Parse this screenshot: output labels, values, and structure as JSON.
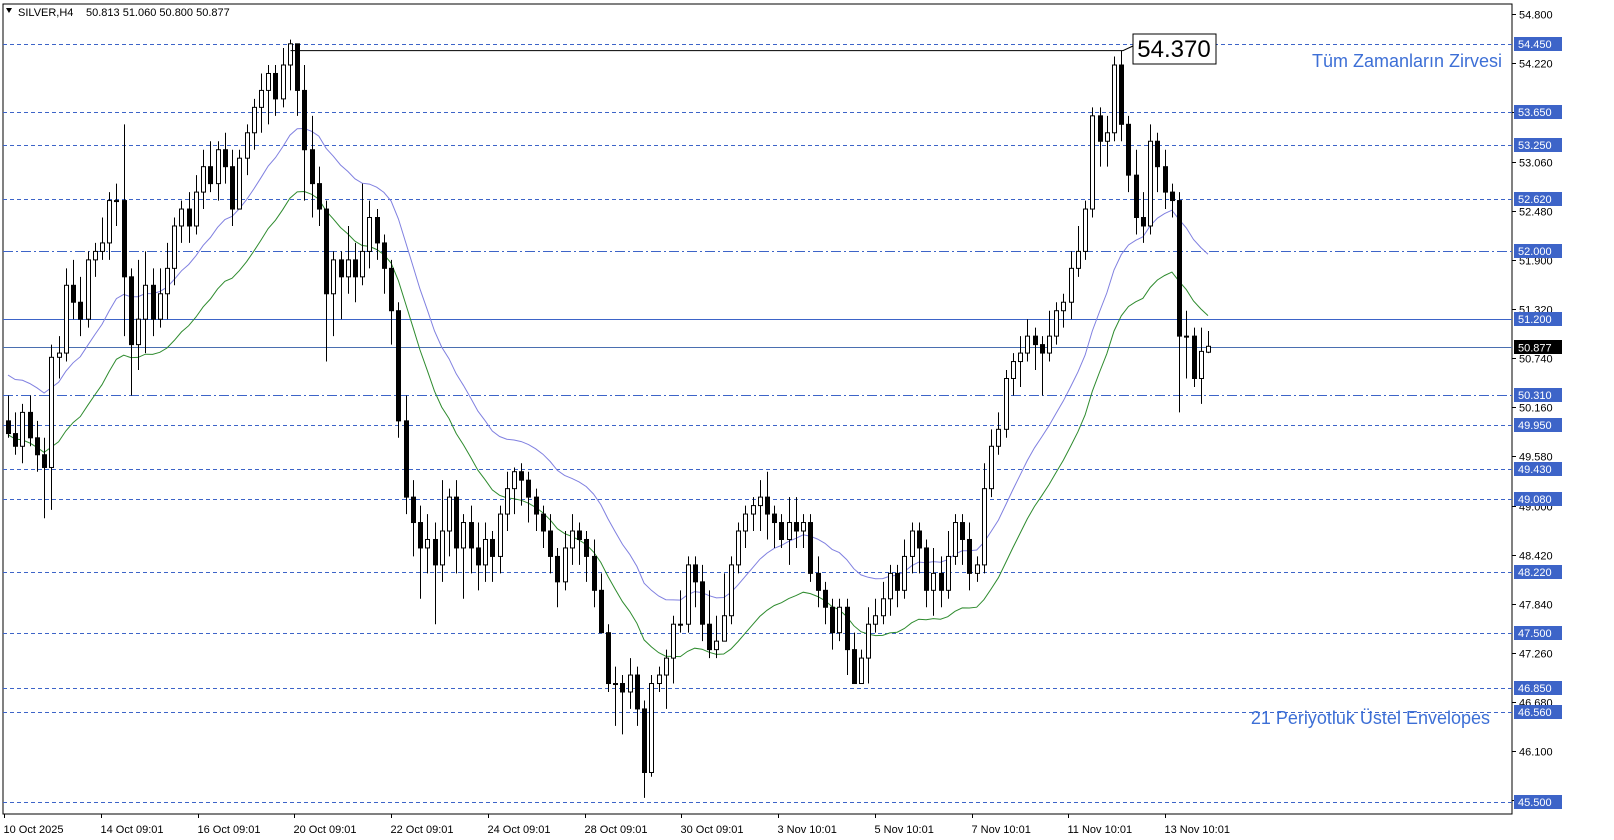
{
  "header": {
    "symbol": "SILVER,H4",
    "ohlc": "50.813 51.060 50.800 50.877"
  },
  "colors": {
    "background": "#ffffff",
    "bull_body": "#ffffff",
    "bear_body": "#000000",
    "candle_outline": "#000000",
    "envelope_upper": "#8080e0",
    "envelope_lower": "#2e8b2e",
    "level_line": "#3d64c8",
    "annotation_text": "#3d6fd6"
  },
  "chart_data": {
    "type": "candlestick",
    "timeframe": "H4",
    "ylim": [
      45.36,
      54.92
    ],
    "y_ticks": [
      "54.800",
      "54.220",
      "53.640",
      "53.060",
      "52.480",
      "51.900",
      "51.320",
      "50.740",
      "50.160",
      "49.580",
      "49.000",
      "48.420",
      "47.840",
      "47.260",
      "46.680",
      "46.100",
      "45.520"
    ],
    "x_ticks": [
      "10 Oct 2025",
      "14 Oct 09:01",
      "16 Oct 09:01",
      "20 Oct 09:01",
      "22 Oct 09:01",
      "24 Oct 09:01",
      "28 Oct 09:01",
      "30 Oct 09:01",
      "3 Nov 10:01",
      "5 Nov 10:01",
      "7 Nov 10:01",
      "11 Nov 10:01",
      "13 Nov 10:01"
    ],
    "levels": [
      {
        "value": 54.45,
        "label": "54.450",
        "style": "dashed"
      },
      {
        "value": 53.65,
        "label": "53.650",
        "style": "dashed"
      },
      {
        "value": 53.25,
        "label": "53.250",
        "style": "dashed"
      },
      {
        "value": 52.62,
        "label": "52.620",
        "style": "dashed"
      },
      {
        "value": 52.0,
        "label": "52.000",
        "style": "dashdot"
      },
      {
        "value": 51.2,
        "label": "51.200",
        "style": "solid"
      },
      {
        "value": 50.31,
        "label": "50.310",
        "style": "dashdot"
      },
      {
        "value": 49.95,
        "label": "49.950",
        "style": "dashed"
      },
      {
        "value": 49.43,
        "label": "49.430",
        "style": "dashed"
      },
      {
        "value": 49.08,
        "label": "49.080",
        "style": "dashed"
      },
      {
        "value": 48.22,
        "label": "48.220",
        "style": "dashed"
      },
      {
        "value": 47.5,
        "label": "47.500",
        "style": "dashed"
      },
      {
        "value": 46.85,
        "label": "46.850",
        "style": "dashed"
      },
      {
        "value": 46.56,
        "label": "46.560",
        "style": "dashed"
      },
      {
        "value": 45.5,
        "label": "45.500",
        "style": "dashed"
      }
    ],
    "current_price": {
      "value": 50.877,
      "label": "50.877"
    },
    "peak_label": {
      "value": 54.37,
      "label": "54.370"
    },
    "annotations": {
      "all_time_high": "Tüm Zamanların Zirvesi",
      "envelopes": "21 Periyotluk Üstel Envelopes"
    },
    "candles": [
      [
        50.0,
        49.85,
        50.3,
        49.8
      ],
      [
        49.85,
        49.7,
        50.1,
        49.6
      ],
      [
        49.7,
        50.1,
        50.2,
        49.5
      ],
      [
        50.1,
        49.8,
        50.3,
        49.7
      ],
      [
        49.8,
        49.6,
        50.0,
        49.4
      ],
      [
        49.6,
        49.45,
        49.8,
        48.85
      ],
      [
        49.45,
        50.75,
        50.9,
        48.95
      ],
      [
        50.75,
        50.8,
        51.0,
        50.5
      ],
      [
        50.8,
        51.6,
        51.8,
        50.7
      ],
      [
        51.6,
        51.4,
        51.9,
        51.2
      ],
      [
        51.4,
        51.2,
        51.7,
        51.0
      ],
      [
        51.2,
        51.9,
        52.0,
        51.1
      ],
      [
        51.9,
        52.0,
        52.1,
        51.7
      ],
      [
        52.0,
        52.1,
        52.4,
        51.9
      ],
      [
        52.1,
        52.6,
        52.7,
        51.9
      ],
      [
        52.6,
        52.6,
        52.8,
        52.3
      ],
      [
        52.6,
        51.7,
        53.5,
        51.0
      ],
      [
        51.7,
        50.9,
        51.8,
        50.3
      ],
      [
        50.9,
        51.2,
        51.9,
        50.6
      ],
      [
        51.2,
        51.6,
        52.0,
        50.8
      ],
      [
        51.6,
        51.2,
        51.8,
        51.0
      ],
      [
        51.2,
        51.5,
        51.8,
        51.1
      ],
      [
        51.5,
        51.8,
        52.1,
        51.2
      ],
      [
        51.8,
        52.3,
        52.4,
        51.6
      ],
      [
        52.3,
        52.5,
        52.6,
        52.1
      ],
      [
        52.5,
        52.3,
        52.7,
        52.1
      ],
      [
        52.3,
        52.7,
        52.9,
        52.2
      ],
      [
        52.7,
        53.0,
        53.2,
        52.5
      ],
      [
        53.0,
        52.8,
        53.3,
        52.7
      ],
      [
        52.8,
        53.2,
        53.3,
        52.6
      ],
      [
        53.2,
        53.0,
        53.4,
        52.8
      ],
      [
        53.0,
        52.5,
        53.2,
        52.3
      ],
      [
        52.5,
        53.1,
        53.2,
        52.5
      ],
      [
        53.1,
        53.4,
        53.5,
        52.9
      ],
      [
        53.4,
        53.7,
        53.8,
        53.2
      ],
      [
        53.7,
        53.9,
        54.1,
        53.4
      ],
      [
        53.9,
        54.1,
        54.2,
        53.5
      ],
      [
        54.1,
        53.8,
        54.2,
        53.6
      ],
      [
        53.8,
        54.2,
        54.4,
        53.7
      ],
      [
        54.2,
        54.45,
        54.5,
        53.9
      ],
      [
        54.45,
        53.9,
        54.45,
        53.6
      ],
      [
        53.9,
        53.2,
        54.2,
        52.6
      ],
      [
        53.2,
        52.8,
        53.6,
        52.4
      ],
      [
        52.8,
        52.5,
        53.0,
        52.3
      ],
      [
        52.5,
        51.5,
        52.6,
        50.7
      ],
      [
        51.5,
        51.9,
        52.0,
        51.0
      ],
      [
        51.9,
        51.7,
        52.0,
        51.2
      ],
      [
        51.7,
        51.9,
        52.3,
        51.5
      ],
      [
        51.9,
        51.7,
        52.1,
        51.4
      ],
      [
        51.7,
        52.0,
        52.8,
        51.6
      ],
      [
        52.0,
        52.4,
        52.6,
        51.8
      ],
      [
        52.4,
        52.1,
        52.5,
        51.9
      ],
      [
        52.1,
        51.8,
        52.2,
        51.5
      ],
      [
        51.8,
        51.3,
        51.9,
        50.9
      ],
      [
        51.3,
        50.0,
        51.4,
        49.8
      ],
      [
        50.0,
        49.1,
        50.3,
        48.9
      ],
      [
        49.1,
        48.8,
        49.3,
        48.4
      ],
      [
        48.8,
        48.5,
        49.0,
        47.9
      ],
      [
        48.5,
        48.6,
        48.9,
        48.2
      ],
      [
        48.6,
        48.3,
        48.8,
        47.6
      ],
      [
        48.3,
        48.7,
        49.3,
        48.1
      ],
      [
        48.7,
        49.1,
        49.2,
        48.4
      ],
      [
        49.1,
        48.5,
        49.3,
        48.2
      ],
      [
        48.5,
        48.8,
        48.9,
        47.9
      ],
      [
        48.8,
        48.5,
        49.0,
        48.2
      ],
      [
        48.5,
        48.3,
        48.8,
        48.0
      ],
      [
        48.3,
        48.6,
        48.8,
        48.1
      ],
      [
        48.6,
        48.4,
        48.7,
        48.1
      ],
      [
        48.4,
        48.9,
        49.0,
        48.2
      ],
      [
        48.9,
        49.2,
        49.4,
        48.7
      ],
      [
        49.2,
        49.4,
        49.45,
        48.9
      ],
      [
        49.4,
        49.3,
        49.5,
        49.0
      ],
      [
        49.3,
        49.1,
        49.4,
        48.8
      ],
      [
        49.1,
        48.9,
        49.2,
        48.7
      ],
      [
        48.9,
        48.7,
        49.0,
        48.5
      ],
      [
        48.7,
        48.4,
        48.9,
        48.2
      ],
      [
        48.4,
        48.1,
        48.5,
        47.8
      ],
      [
        48.1,
        48.5,
        48.7,
        48.0
      ],
      [
        48.5,
        48.7,
        48.9,
        48.3
      ],
      [
        48.7,
        48.6,
        48.8,
        48.3
      ],
      [
        48.6,
        48.4,
        48.7,
        48.1
      ],
      [
        48.4,
        48.0,
        48.6,
        47.8
      ],
      [
        48.0,
        47.5,
        48.2,
        47.5
      ],
      [
        47.5,
        46.9,
        47.6,
        46.8
      ],
      [
        46.9,
        46.9,
        47.1,
        46.4
      ],
      [
        46.9,
        46.8,
        47.0,
        46.3
      ],
      [
        46.8,
        47.0,
        47.2,
        46.6
      ],
      [
        47.0,
        46.6,
        47.1,
        46.4
      ],
      [
        46.6,
        45.85,
        46.7,
        45.55
      ],
      [
        45.85,
        46.9,
        47.0,
        45.8
      ],
      [
        46.9,
        47.0,
        47.1,
        46.8
      ],
      [
        47.0,
        47.2,
        47.3,
        46.6
      ],
      [
        47.2,
        47.6,
        47.7,
        46.9
      ],
      [
        47.6,
        47.6,
        48.0,
        47.5
      ],
      [
        47.6,
        48.3,
        48.4,
        47.5
      ],
      [
        48.3,
        48.1,
        48.4,
        47.8
      ],
      [
        48.1,
        47.6,
        48.3,
        47.4
      ],
      [
        47.6,
        47.3,
        48.0,
        47.2
      ],
      [
        47.3,
        47.4,
        47.7,
        47.2
      ],
      [
        47.4,
        47.7,
        48.2,
        47.4
      ],
      [
        47.7,
        48.3,
        48.4,
        47.6
      ],
      [
        48.3,
        48.7,
        48.8,
        48.2
      ],
      [
        48.7,
        48.9,
        49.0,
        48.5
      ],
      [
        48.9,
        49.0,
        49.1,
        48.7
      ],
      [
        49.0,
        49.1,
        49.3,
        48.7
      ],
      [
        49.1,
        48.9,
        49.4,
        48.6
      ],
      [
        48.9,
        48.8,
        49.0,
        48.5
      ],
      [
        48.8,
        48.6,
        48.9,
        48.5
      ],
      [
        48.6,
        48.8,
        49.1,
        48.3
      ],
      [
        48.8,
        48.7,
        49.1,
        48.5
      ],
      [
        48.7,
        48.8,
        48.9,
        48.5
      ],
      [
        48.8,
        48.2,
        48.9,
        48.1
      ],
      [
        48.2,
        48.0,
        48.4,
        47.8
      ],
      [
        48.0,
        47.8,
        48.1,
        47.6
      ],
      [
        47.8,
        47.5,
        47.9,
        47.3
      ],
      [
        47.5,
        47.8,
        47.9,
        47.4
      ],
      [
        47.8,
        47.3,
        47.9,
        47.0
      ],
      [
        47.3,
        46.9,
        47.5,
        46.9
      ],
      [
        46.9,
        47.2,
        47.3,
        46.9
      ],
      [
        47.2,
        47.6,
        47.8,
        46.9
      ],
      [
        47.6,
        47.7,
        47.9,
        47.5
      ],
      [
        47.7,
        47.9,
        48.1,
        47.6
      ],
      [
        47.9,
        48.2,
        48.3,
        47.7
      ],
      [
        48.2,
        48.0,
        48.3,
        47.8
      ],
      [
        48.0,
        48.4,
        48.6,
        47.9
      ],
      [
        48.4,
        48.7,
        48.8,
        48.2
      ],
      [
        48.7,
        48.5,
        48.8,
        48.2
      ],
      [
        48.5,
        48.0,
        48.6,
        47.8
      ],
      [
        48.0,
        48.2,
        48.5,
        47.7
      ],
      [
        48.2,
        48.0,
        48.4,
        47.8
      ],
      [
        48.0,
        48.4,
        48.7,
        47.9
      ],
      [
        48.4,
        48.8,
        48.9,
        48.3
      ],
      [
        48.8,
        48.6,
        48.9,
        48.3
      ],
      [
        48.6,
        48.2,
        48.8,
        48.0
      ],
      [
        48.2,
        48.3,
        48.4,
        48.1
      ],
      [
        48.3,
        49.2,
        49.5,
        48.2
      ],
      [
        49.2,
        49.7,
        49.9,
        49.1
      ],
      [
        49.7,
        49.9,
        50.1,
        49.6
      ],
      [
        49.9,
        50.5,
        50.6,
        49.8
      ],
      [
        50.5,
        50.7,
        50.8,
        50.3
      ],
      [
        50.7,
        50.8,
        51.0,
        50.4
      ],
      [
        50.8,
        51.0,
        51.2,
        50.7
      ],
      [
        51.0,
        50.9,
        51.1,
        50.6
      ],
      [
        50.9,
        50.8,
        51.0,
        50.3
      ],
      [
        50.8,
        51.0,
        51.3,
        50.7
      ],
      [
        51.0,
        51.3,
        51.4,
        50.9
      ],
      [
        51.3,
        51.4,
        51.5,
        51.1
      ],
      [
        51.4,
        51.8,
        52.0,
        51.2
      ],
      [
        51.8,
        52.0,
        52.3,
        51.7
      ],
      [
        52.0,
        52.5,
        52.6,
        51.9
      ],
      [
        52.5,
        53.6,
        53.7,
        52.4
      ],
      [
        53.6,
        53.3,
        53.7,
        53.0
      ],
      [
        53.3,
        53.4,
        53.6,
        53.0
      ],
      [
        53.4,
        54.2,
        54.3,
        53.3
      ],
      [
        54.2,
        53.5,
        54.37,
        53.3
      ],
      [
        53.5,
        52.9,
        53.6,
        52.7
      ],
      [
        52.9,
        52.4,
        53.2,
        52.2
      ],
      [
        52.4,
        52.3,
        52.7,
        52.1
      ],
      [
        52.3,
        53.3,
        53.5,
        52.2
      ],
      [
        53.3,
        53.0,
        53.4,
        52.7
      ],
      [
        53.0,
        52.7,
        53.2,
        52.5
      ],
      [
        52.7,
        52.6,
        52.8,
        52.4
      ],
      [
        52.6,
        51.0,
        52.7,
        50.1
      ],
      [
        51.0,
        51.0,
        51.3,
        50.5
      ],
      [
        51.0,
        50.5,
        51.1,
        50.4
      ],
      [
        50.5,
        50.82,
        51.1,
        50.2
      ],
      [
        50.81,
        50.88,
        51.06,
        50.8
      ]
    ]
  }
}
